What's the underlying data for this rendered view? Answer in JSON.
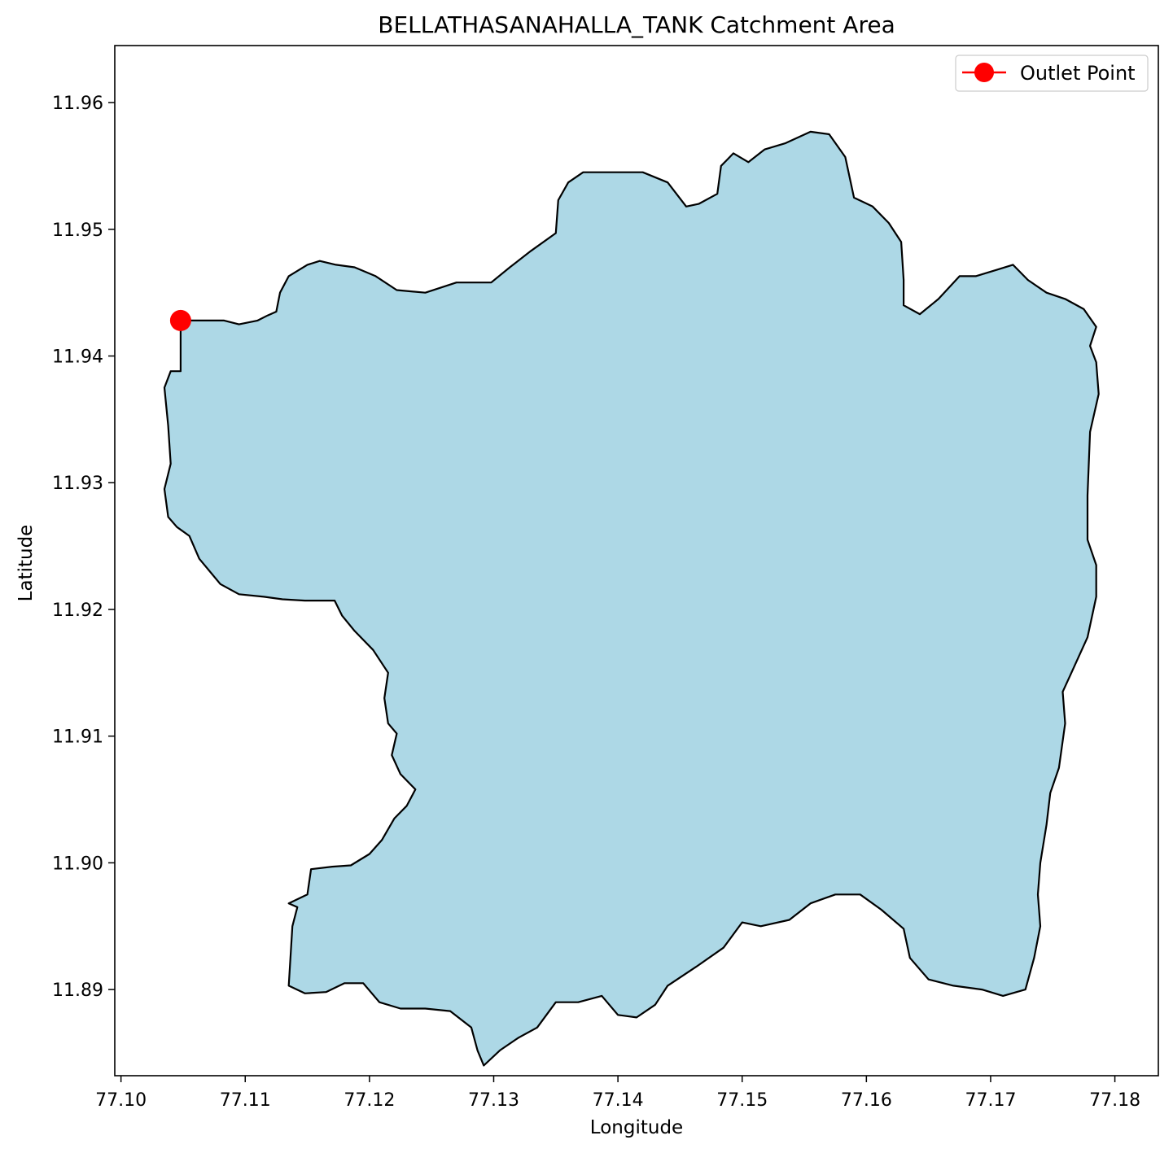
{
  "chart_data": {
    "type": "area",
    "title": "BELLATHASANAHALLA_TANK Catchment Area",
    "xlabel": "Longitude",
    "ylabel": "Latitude",
    "xlim": [
      77.0995,
      77.1835
    ],
    "ylim": [
      11.8832,
      11.9645
    ],
    "x_ticks": [
      77.1,
      77.11,
      77.12,
      77.13,
      77.14,
      77.15,
      77.16,
      77.17,
      77.18
    ],
    "x_tick_labels": [
      "77.10",
      "77.11",
      "77.12",
      "77.13",
      "77.14",
      "77.15",
      "77.16",
      "77.17",
      "77.18"
    ],
    "y_ticks": [
      11.89,
      11.9,
      11.91,
      11.92,
      11.93,
      11.94,
      11.95,
      11.96
    ],
    "y_tick_labels": [
      "11.89",
      "11.90",
      "11.91",
      "11.92",
      "11.93",
      "11.94",
      "11.95",
      "11.96"
    ],
    "grid": false,
    "legend_placement": "top-right",
    "legend": [
      {
        "label": "Outlet Point",
        "marker": "circle",
        "color": "#ff0000"
      }
    ],
    "colors": {
      "fill": "#add8e6",
      "edge": "#000000",
      "outlet": "#ff0000"
    },
    "outlet_point": {
      "name": "Outlet Point",
      "lon": 77.1048,
      "lat": 11.9428
    },
    "catchment_boundary": [
      [
        77.1048,
        11.9428
      ],
      [
        77.1083,
        11.9428
      ],
      [
        77.1095,
        11.9425
      ],
      [
        77.111,
        11.9428
      ],
      [
        77.1118,
        11.9432
      ],
      [
        77.1125,
        11.9435
      ],
      [
        77.1128,
        11.945
      ],
      [
        77.1135,
        11.9463
      ],
      [
        77.115,
        11.9472
      ],
      [
        77.116,
        11.9475
      ],
      [
        77.1173,
        11.9472
      ],
      [
        77.1188,
        11.947
      ],
      [
        77.1205,
        11.9463
      ],
      [
        77.1222,
        11.9452
      ],
      [
        77.1245,
        11.945
      ],
      [
        77.127,
        11.9458
      ],
      [
        77.1298,
        11.9458
      ],
      [
        77.1313,
        11.947
      ],
      [
        77.133,
        11.9483
      ],
      [
        77.135,
        11.9497
      ],
      [
        77.1352,
        11.9523
      ],
      [
        77.136,
        11.9537
      ],
      [
        77.1372,
        11.9545
      ],
      [
        77.1398,
        11.9545
      ],
      [
        77.142,
        11.9545
      ],
      [
        77.144,
        11.9537
      ],
      [
        77.1455,
        11.9518
      ],
      [
        77.1465,
        11.952
      ],
      [
        77.148,
        11.9528
      ],
      [
        77.1483,
        11.955
      ],
      [
        77.1493,
        11.956
      ],
      [
        77.1505,
        11.9553
      ],
      [
        77.1518,
        11.9563
      ],
      [
        77.1535,
        11.9568
      ],
      [
        77.1555,
        11.9577
      ],
      [
        77.157,
        11.9575
      ],
      [
        77.1583,
        11.9557
      ],
      [
        77.159,
        11.9525
      ],
      [
        77.1605,
        11.9518
      ],
      [
        77.1618,
        11.9505
      ],
      [
        77.1628,
        11.949
      ],
      [
        77.163,
        11.946
      ],
      [
        77.163,
        11.944
      ],
      [
        77.1643,
        11.9433
      ],
      [
        77.1658,
        11.9445
      ],
      [
        77.1675,
        11.9463
      ],
      [
        77.1688,
        11.9463
      ],
      [
        77.1705,
        11.9468
      ],
      [
        77.1718,
        11.9472
      ],
      [
        77.173,
        11.946
      ],
      [
        77.1745,
        11.945
      ],
      [
        77.176,
        11.9445
      ],
      [
        77.1775,
        11.9437
      ],
      [
        77.1785,
        11.9423
      ],
      [
        77.178,
        11.9408
      ],
      [
        77.1785,
        11.9395
      ],
      [
        77.1787,
        11.937
      ],
      [
        77.178,
        11.934
      ],
      [
        77.1778,
        11.929
      ],
      [
        77.1778,
        11.9255
      ],
      [
        77.1785,
        11.9235
      ],
      [
        77.1785,
        11.921
      ],
      [
        77.1778,
        11.9178
      ],
      [
        77.1765,
        11.915
      ],
      [
        77.1758,
        11.9135
      ],
      [
        77.176,
        11.911
      ],
      [
        77.1755,
        11.9075
      ],
      [
        77.1748,
        11.9055
      ],
      [
        77.1745,
        11.903
      ],
      [
        77.174,
        11.9
      ],
      [
        77.1738,
        11.8975
      ],
      [
        77.174,
        11.895
      ],
      [
        77.1735,
        11.8925
      ],
      [
        77.1728,
        11.89
      ],
      [
        77.171,
        11.8895
      ],
      [
        77.1693,
        11.89
      ],
      [
        77.167,
        11.8903
      ],
      [
        77.165,
        11.8908
      ],
      [
        77.1635,
        11.8925
      ],
      [
        77.163,
        11.8948
      ],
      [
        77.1612,
        11.8963
      ],
      [
        77.1595,
        11.8975
      ],
      [
        77.1575,
        11.8975
      ],
      [
        77.1555,
        11.8968
      ],
      [
        77.1538,
        11.8955
      ],
      [
        77.1515,
        11.895
      ],
      [
        77.15,
        11.8953
      ],
      [
        77.1485,
        11.8933
      ],
      [
        77.1463,
        11.8918
      ],
      [
        77.144,
        11.8903
      ],
      [
        77.143,
        11.8888
      ],
      [
        77.1415,
        11.8878
      ],
      [
        77.14,
        11.888
      ],
      [
        77.1387,
        11.8895
      ],
      [
        77.1368,
        11.889
      ],
      [
        77.135,
        11.889
      ],
      [
        77.1335,
        11.887
      ],
      [
        77.132,
        11.8862
      ],
      [
        77.1305,
        11.8852
      ],
      [
        77.1292,
        11.884
      ],
      [
        77.1287,
        11.8852
      ],
      [
        77.1282,
        11.887
      ],
      [
        77.1265,
        11.8883
      ],
      [
        77.1245,
        11.8885
      ],
      [
        77.1225,
        11.8885
      ],
      [
        77.1208,
        11.889
      ],
      [
        77.1195,
        11.8905
      ],
      [
        77.118,
        11.8905
      ],
      [
        77.1165,
        11.8898
      ],
      [
        77.1148,
        11.8897
      ],
      [
        77.1135,
        11.8903
      ],
      [
        77.1138,
        11.895
      ],
      [
        77.1142,
        11.8965
      ],
      [
        77.1135,
        11.8968
      ],
      [
        77.115,
        11.8975
      ],
      [
        77.1153,
        11.8995
      ],
      [
        77.117,
        11.8997
      ],
      [
        77.1185,
        11.8998
      ],
      [
        77.12,
        11.9007
      ],
      [
        77.121,
        11.9018
      ],
      [
        77.122,
        11.9035
      ],
      [
        77.123,
        11.9045
      ],
      [
        77.1237,
        11.9058
      ],
      [
        77.1225,
        11.907
      ],
      [
        77.1218,
        11.9085
      ],
      [
        77.1222,
        11.9102
      ],
      [
        77.1215,
        11.911
      ],
      [
        77.1212,
        11.913
      ],
      [
        77.1215,
        11.915
      ],
      [
        77.1203,
        11.9168
      ],
      [
        77.1188,
        11.9183
      ],
      [
        77.1178,
        11.9195
      ],
      [
        77.1172,
        11.9207
      ],
      [
        77.1148,
        11.9207
      ],
      [
        77.113,
        11.9208
      ],
      [
        77.1115,
        11.921
      ],
      [
        77.1095,
        11.9212
      ],
      [
        77.108,
        11.922
      ],
      [
        77.1063,
        11.924
      ],
      [
        77.1055,
        11.9258
      ],
      [
        77.1045,
        11.9265
      ],
      [
        77.1038,
        11.9273
      ],
      [
        77.1035,
        11.9295
      ],
      [
        77.104,
        11.9315
      ],
      [
        77.1038,
        11.9345
      ],
      [
        77.1035,
        11.9375
      ],
      [
        77.104,
        11.9388
      ],
      [
        77.1048,
        11.9388
      ],
      [
        77.1048,
        11.9428
      ]
    ]
  }
}
